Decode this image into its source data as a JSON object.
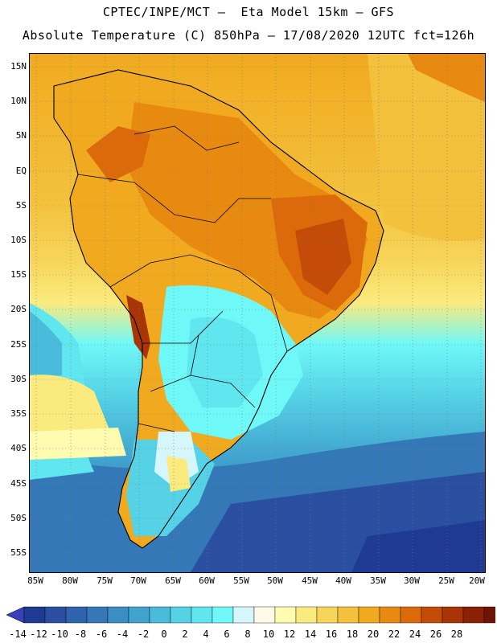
{
  "header": {
    "line1": "CPTEC/INPE/MCT –  Eta Model 15km – GFS",
    "line2": "Absolute Temperature (C) 850hPa – 17/08/2020 12UTC fct=126h"
  },
  "axes": {
    "lat_labels": [
      "15N",
      "10N",
      "5N",
      "EQ",
      "5S",
      "10S",
      "15S",
      "20S",
      "25S",
      "30S",
      "35S",
      "40S",
      "45S",
      "50S",
      "55S"
    ],
    "lon_labels": [
      "85W",
      "80W",
      "75W",
      "70W",
      "65W",
      "60W",
      "55W",
      "50W",
      "45W",
      "40W",
      "35W",
      "30W",
      "25W",
      "20W"
    ]
  },
  "colorbar": {
    "labels": [
      "-14",
      "-12",
      "-10",
      "-8",
      "-6",
      "-4",
      "-2",
      "0",
      "2",
      "4",
      "6",
      "8",
      "10",
      "12",
      "14",
      "16",
      "18",
      "20",
      "22",
      "24",
      "26",
      "28"
    ],
    "colors": [
      "#1f3a93",
      "#2a4fa0",
      "#2f63ad",
      "#3478b8",
      "#3a8ec4",
      "#41a4cf",
      "#49bbdb",
      "#55d2e6",
      "#5fe6ef",
      "#6ff8f8",
      "#d5f6fb",
      "#fffbe8",
      "#fffcb0",
      "#fbeb7f",
      "#f7d55a",
      "#f3c13c",
      "#f1aa1f",
      "#e88a10",
      "#dc6a0b",
      "#c44c08",
      "#a93506",
      "#8b2005",
      "#6d1402"
    ],
    "under_color": "#3a3fbd",
    "over_color": "#7a0a1a"
  }
}
